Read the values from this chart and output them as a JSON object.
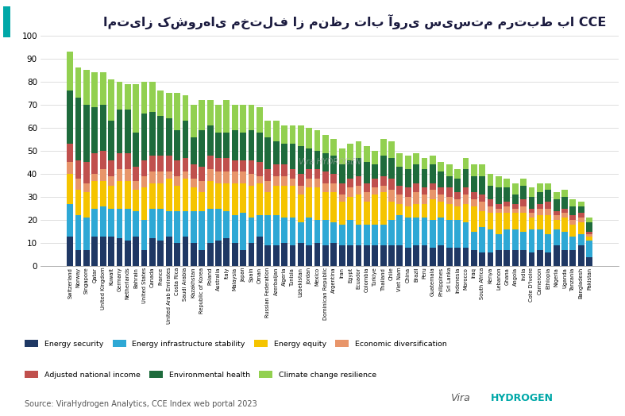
{
  "title": "امتیاز کشور‌های مختلف از منظر تاب آوری سیستم مرتبط با CCE",
  "source": "Source: ViraHydrogen Analytics, CCE Index web portal 2023",
  "categories": [
    "Switzerland",
    "Norway",
    "Singapore",
    "Qatar",
    "United Kingdom",
    "Kuwait",
    "Germany",
    "Netherlands",
    "Bahrain",
    "United States",
    "Canada",
    "France",
    "United Arab Emirates",
    "Costa Rica",
    "Saudi Arabia",
    "Kazakhstan",
    "Republic of Korea",
    "Poland",
    "Australia",
    "Italy",
    "Malaysia",
    "Japan",
    "Spain",
    "Oman",
    "Russian Federation",
    "Azerbaijan",
    "Algeria",
    "Tunisia",
    "Uzbekistan",
    "Jordan",
    "Mexico",
    "Dominican Republic",
    "Argentina",
    "Iran",
    "Egypt",
    "Ecuador",
    "Colombia",
    "Turkiye",
    "Thailand",
    "Chile",
    "Viet Nam",
    "China",
    "Brazil",
    "Peru",
    "Guatemala",
    "Philippines",
    "Sri Lanka",
    "Indonesia",
    "Morocco",
    "Iraq",
    "South Africa",
    "Kenya",
    "Lebanon",
    "Ghana",
    "Angola",
    "India",
    "Cote D'Ivoire",
    "Cameroon",
    "Ethiopia",
    "Nigeria",
    "Uganda",
    "Tanzania",
    "Bangladesh",
    "Pakistan"
  ],
  "energy_security": [
    13,
    7,
    7,
    13,
    13,
    13,
    12,
    11,
    13,
    7,
    12,
    11,
    13,
    10,
    13,
    10,
    7,
    10,
    11,
    12,
    10,
    7,
    10,
    13,
    9,
    9,
    10,
    9,
    10,
    9,
    10,
    9,
    10,
    9,
    9,
    9,
    9,
    9,
    9,
    9,
    9,
    8,
    9,
    9,
    8,
    9,
    8,
    8,
    8,
    7,
    6,
    6,
    7,
    7,
    7,
    7,
    6,
    7,
    6,
    9,
    7,
    7,
    9,
    4
  ],
  "energy_infrastructure": [
    14,
    15,
    14,
    12,
    13,
    12,
    13,
    14,
    11,
    13,
    13,
    14,
    11,
    14,
    11,
    14,
    17,
    15,
    14,
    12,
    12,
    16,
    11,
    9,
    13,
    13,
    11,
    12,
    9,
    12,
    10,
    11,
    9,
    9,
    11,
    9,
    9,
    9,
    9,
    11,
    13,
    13,
    12,
    12,
    12,
    12,
    12,
    12,
    11,
    8,
    11,
    10,
    7,
    9,
    9,
    8,
    10,
    9,
    8,
    7,
    8,
    6,
    5,
    7
  ],
  "energy_equity": [
    13,
    11,
    11,
    12,
    11,
    10,
    12,
    12,
    9,
    14,
    11,
    11,
    14,
    11,
    14,
    10,
    8,
    12,
    11,
    12,
    14,
    13,
    14,
    14,
    10,
    13,
    14,
    14,
    12,
    13,
    14,
    12,
    13,
    10,
    10,
    13,
    10,
    13,
    14,
    8,
    5,
    5,
    6,
    6,
    9,
    7,
    7,
    6,
    8,
    11,
    7,
    7,
    9,
    7,
    7,
    8,
    5,
    6,
    8,
    4,
    6,
    5,
    5,
    2
  ],
  "economic_diversification": [
    5,
    5,
    4,
    3,
    5,
    4,
    5,
    5,
    4,
    5,
    5,
    5,
    3,
    4,
    3,
    4,
    5,
    5,
    5,
    5,
    5,
    5,
    5,
    3,
    5,
    4,
    4,
    3,
    4,
    4,
    4,
    4,
    4,
    3,
    4,
    4,
    4,
    3,
    3,
    5,
    4,
    4,
    5,
    4,
    4,
    3,
    3,
    3,
    4,
    3,
    4,
    3,
    2,
    3,
    2,
    3,
    2,
    3,
    3,
    2,
    2,
    2,
    2,
    1
  ],
  "adjusted_national_income": [
    8,
    8,
    9,
    9,
    8,
    7,
    7,
    7,
    6,
    7,
    7,
    7,
    7,
    7,
    6,
    6,
    6,
    6,
    6,
    6,
    5,
    5,
    6,
    6,
    5,
    5,
    5,
    4,
    5,
    4,
    4,
    5,
    4,
    5,
    4,
    4,
    4,
    4,
    4,
    5,
    4,
    4,
    4,
    3,
    3,
    3,
    4,
    3,
    3,
    3,
    3,
    3,
    2,
    2,
    2,
    3,
    2,
    2,
    3,
    2,
    2,
    2,
    2,
    1
  ],
  "environmental_health": [
    23,
    27,
    25,
    20,
    20,
    17,
    19,
    19,
    15,
    20,
    19,
    17,
    16,
    13,
    16,
    12,
    16,
    13,
    11,
    11,
    13,
    12,
    13,
    13,
    14,
    10,
    9,
    11,
    12,
    9,
    8,
    8,
    8,
    8,
    8,
    8,
    9,
    6,
    9,
    9,
    8,
    8,
    8,
    8,
    8,
    7,
    5,
    6,
    8,
    7,
    8,
    6,
    7,
    6,
    4,
    6,
    5,
    5,
    5,
    5,
    5,
    4,
    3,
    4
  ],
  "climate_change_resilience": [
    17,
    13,
    15,
    15,
    14,
    18,
    12,
    11,
    21,
    14,
    13,
    11,
    11,
    16,
    11,
    14,
    13,
    11,
    12,
    14,
    11,
    12,
    11,
    11,
    7,
    9,
    8,
    8,
    9,
    9,
    9,
    8,
    7,
    7,
    7,
    7,
    7,
    6,
    7,
    7,
    6,
    6,
    5,
    5,
    4,
    4,
    5,
    4,
    5,
    5,
    5,
    5,
    5,
    4,
    5,
    3,
    4,
    4,
    3,
    3,
    3,
    3,
    2,
    2
  ],
  "colors": {
    "energy_security": "#1f3864",
    "energy_infrastructure": "#2ea8d5",
    "energy_equity": "#f5c400",
    "economic_diversification": "#e8956a",
    "adjusted_national_income": "#c0504d",
    "environmental_health": "#1e6b3c",
    "climate_change_resilience": "#92d050"
  },
  "legend_order": [
    "energy_security",
    "energy_infrastructure",
    "energy_equity",
    "economic_diversification",
    "adjusted_national_income",
    "environmental_health",
    "climate_change_resilience"
  ],
  "legend_labels": {
    "energy_security": "Energy security",
    "energy_infrastructure": "Energy infrastructure stability",
    "energy_equity": "Energy equity",
    "economic_diversification": "Economic diversification",
    "adjusted_national_income": "Adjusted national income",
    "environmental_health": "Environmental health",
    "climate_change_resilience": "Climate change resilience"
  },
  "ylim": [
    0,
    100
  ],
  "accent_color": "#00a8a8",
  "title_color": "#1a1a3e",
  "background_color": "#ffffff"
}
